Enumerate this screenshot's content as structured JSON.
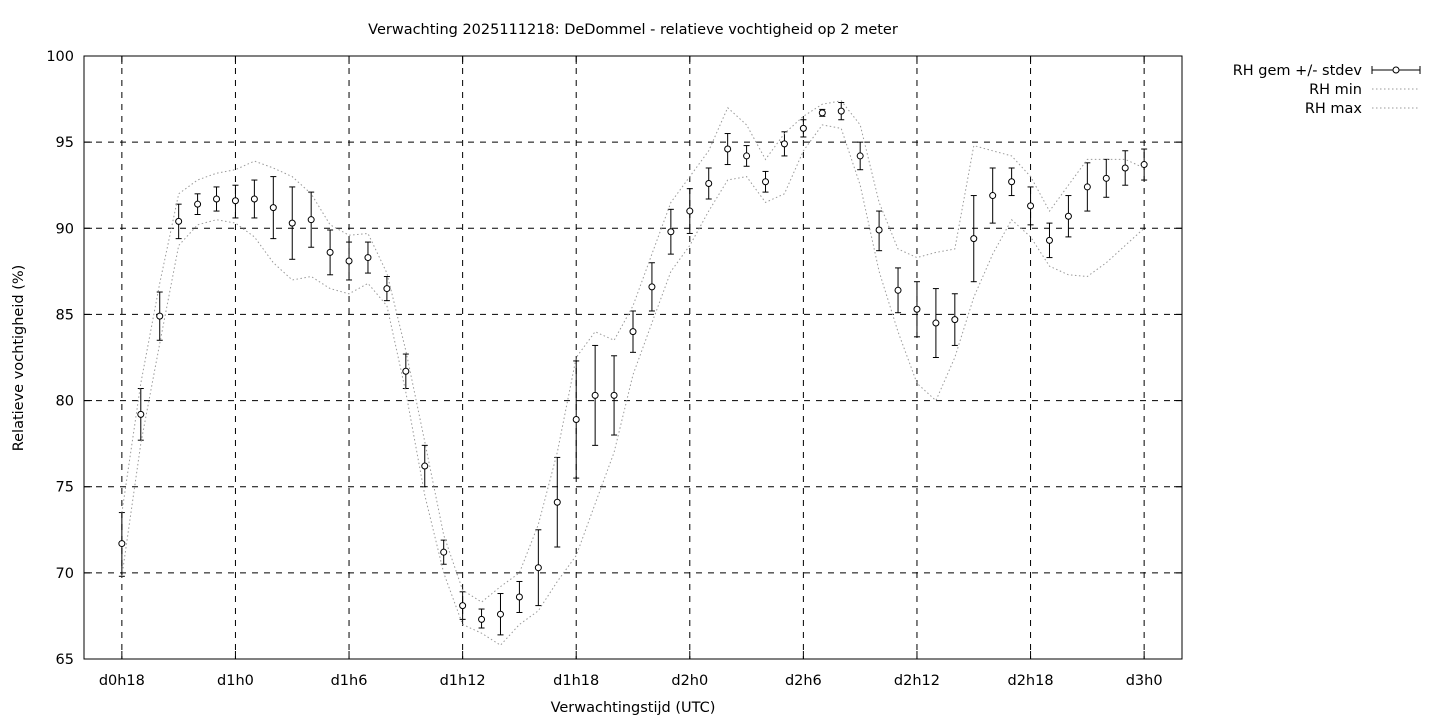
{
  "chart_data": {
    "type": "line",
    "title": "Verwachting 2025111218: DeDommel - relatieve vochtigheid op 2 meter",
    "xlabel": "Verwachtingstijd (UTC)",
    "ylabel": "Relatieve vochtigheid (%)",
    "ylim": [
      65,
      100
    ],
    "xlim_hours": [
      -2,
      56
    ],
    "yticks": [
      65,
      70,
      75,
      80,
      85,
      90,
      95,
      100
    ],
    "xticks": [
      {
        "h": 0,
        "label": "d0h18"
      },
      {
        "h": 6,
        "label": "d1h0"
      },
      {
        "h": 12,
        "label": "d1h6"
      },
      {
        "h": 18,
        "label": "d1h12"
      },
      {
        "h": 24,
        "label": "d1h18"
      },
      {
        "h": 30,
        "label": "d2h0"
      },
      {
        "h": 36,
        "label": "d2h6"
      },
      {
        "h": 42,
        "label": "d2h12"
      },
      {
        "h": 48,
        "label": "d2h18"
      },
      {
        "h": 54,
        "label": "d3h0"
      }
    ],
    "grid": true,
    "legend_position": "outside-top-right",
    "series": [
      {
        "name": "RH gem +/- stdev",
        "style": "errorbars-points",
        "x": [
          0,
          1,
          2,
          3,
          4,
          5,
          6,
          7,
          8,
          9,
          10,
          11,
          12,
          13,
          14,
          15,
          16,
          17,
          18,
          19,
          20,
          21,
          22,
          23,
          24,
          25,
          26,
          27,
          28,
          29,
          30,
          31,
          32,
          33,
          34,
          35,
          36,
          37,
          38,
          39,
          40,
          41,
          42,
          43,
          44,
          45,
          46,
          47,
          48,
          49,
          50,
          51,
          52,
          53,
          54
        ],
        "mean": [
          71.7,
          79.2,
          84.9,
          90.4,
          91.4,
          91.7,
          91.6,
          91.7,
          91.2,
          90.3,
          90.5,
          88.6,
          88.1,
          88.3,
          86.5,
          81.7,
          76.2,
          71.2,
          68.1,
          67.3,
          67.6,
          68.6,
          70.3,
          74.1,
          78.9,
          80.3,
          80.3,
          84.0,
          86.6,
          89.8,
          91.0,
          92.6,
          94.6,
          94.2,
          92.7,
          94.9,
          95.8,
          96.7,
          96.8,
          94.2,
          89.9,
          86.4,
          85.3,
          84.5,
          84.7,
          89.4,
          91.9,
          92.7,
          91.3,
          89.3,
          90.7,
          92.4,
          92.9,
          93.5,
          93.7
        ],
        "low": [
          69.8,
          77.7,
          83.5,
          89.4,
          90.8,
          91.0,
          90.6,
          90.6,
          89.4,
          88.2,
          88.9,
          87.3,
          87.0,
          87.4,
          85.8,
          80.7,
          75.0,
          70.5,
          67.3,
          66.8,
          66.4,
          67.7,
          68.1,
          71.5,
          75.5,
          77.4,
          78.0,
          82.8,
          85.2,
          88.5,
          89.7,
          91.7,
          93.7,
          93.6,
          92.1,
          94.2,
          95.3,
          96.5,
          96.3,
          93.4,
          88.7,
          85.1,
          83.7,
          82.5,
          83.2,
          86.9,
          90.3,
          91.9,
          90.2,
          88.3,
          89.5,
          91.0,
          91.8,
          92.5,
          92.8
        ],
        "high": [
          73.5,
          80.7,
          86.3,
          91.4,
          92.0,
          92.4,
          92.5,
          92.8,
          93.0,
          92.4,
          92.1,
          89.9,
          89.2,
          89.2,
          87.2,
          82.7,
          77.4,
          71.9,
          68.9,
          67.9,
          68.8,
          69.5,
          72.5,
          76.7,
          82.3,
          83.2,
          82.6,
          85.2,
          88.0,
          91.1,
          92.3,
          93.5,
          95.5,
          94.8,
          93.3,
          95.6,
          96.3,
          96.9,
          97.3,
          95.0,
          91.0,
          87.7,
          86.9,
          86.5,
          86.2,
          91.9,
          93.5,
          93.5,
          92.4,
          90.3,
          91.9,
          93.8,
          94.0,
          94.5,
          94.6
        ]
      },
      {
        "name": "RH min",
        "style": "dotted",
        "x": [
          0,
          1,
          2,
          3,
          4,
          5,
          6,
          7,
          8,
          9,
          10,
          11,
          12,
          13,
          14,
          15,
          16,
          17,
          18,
          19,
          20,
          21,
          22,
          23,
          24,
          25,
          26,
          27,
          28,
          29,
          30,
          31,
          32,
          33,
          34,
          35,
          36,
          37,
          38,
          39,
          40,
          41,
          42,
          43,
          44,
          45,
          46,
          47,
          48,
          49,
          50,
          51,
          52,
          53,
          54
        ],
        "values": [
          69.8,
          77.5,
          83.3,
          89.0,
          90.2,
          90.5,
          90.3,
          89.5,
          88.0,
          87.0,
          87.2,
          86.5,
          86.2,
          86.8,
          85.5,
          80.5,
          74.5,
          70.0,
          67.0,
          66.5,
          65.8,
          67.0,
          67.8,
          69.5,
          71.0,
          74.0,
          77.0,
          81.5,
          84.5,
          87.5,
          89.0,
          91.0,
          92.8,
          93.0,
          91.5,
          92.0,
          94.5,
          96.0,
          95.8,
          92.5,
          87.5,
          84.0,
          81.0,
          80.0,
          82.5,
          86.0,
          88.5,
          90.5,
          89.5,
          87.8,
          87.3,
          87.2,
          88.0,
          89.0,
          90.0
        ]
      },
      {
        "name": "RH max",
        "style": "dotted",
        "x": [
          0,
          1,
          2,
          3,
          4,
          5,
          6,
          7,
          8,
          9,
          10,
          11,
          12,
          13,
          14,
          15,
          16,
          17,
          18,
          19,
          20,
          21,
          22,
          23,
          24,
          25,
          26,
          27,
          28,
          29,
          30,
          31,
          32,
          33,
          34,
          35,
          36,
          37,
          38,
          39,
          40,
          41,
          42,
          43,
          44,
          45,
          46,
          47,
          48,
          49,
          50,
          51,
          52,
          53,
          54
        ],
        "values": [
          73.5,
          81.0,
          86.8,
          92.0,
          92.8,
          93.2,
          93.4,
          93.9,
          93.5,
          93.0,
          92.0,
          90.2,
          89.6,
          89.7,
          87.4,
          82.9,
          77.6,
          72.2,
          69.0,
          68.3,
          69.2,
          70.0,
          72.8,
          77.0,
          82.5,
          84.0,
          83.5,
          85.5,
          88.5,
          91.5,
          93.0,
          94.5,
          97.0,
          96.0,
          94.0,
          95.5,
          96.5,
          97.2,
          97.4,
          96.0,
          91.5,
          88.8,
          88.3,
          88.6,
          88.8,
          94.8,
          94.5,
          94.2,
          93.0,
          91.0,
          92.5,
          94.0,
          94.0,
          94.0,
          93.5
        ]
      }
    ]
  }
}
